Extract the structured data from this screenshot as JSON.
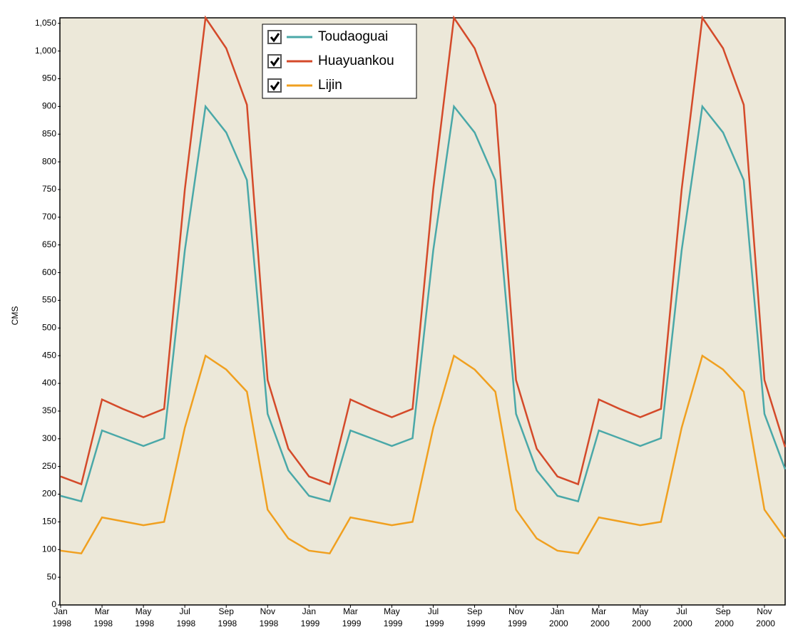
{
  "chart_data": {
    "type": "line",
    "y_label": "CMS",
    "categories": [
      "Jan 1998",
      null,
      "Mar 1998",
      null,
      "May 1998",
      null,
      "Jul 1998",
      null,
      "Sep 1998",
      null,
      "Nov 1998",
      null,
      "Jan 1999",
      null,
      "Mar 1999",
      null,
      "May 1999",
      null,
      "Jul 1999",
      null,
      "Sep 1999",
      null,
      "Nov 1999",
      null,
      "Jan 2000",
      null,
      "Mar 2000",
      null,
      "May 2000",
      null,
      "Jul 2000",
      null,
      "Sep 2000",
      null,
      "Nov 2000",
      null
    ],
    "series": [
      {
        "name": "Toudaoguai",
        "color": "#4aa8a8",
        "values": [
          197,
          187,
          315,
          301,
          287,
          301,
          640,
          900,
          853,
          767,
          345,
          243,
          197,
          187,
          315,
          301,
          287,
          301,
          640,
          900,
          853,
          767,
          345,
          243,
          197,
          187,
          315,
          301,
          287,
          301,
          640,
          900,
          853,
          767,
          345,
          245
        ]
      },
      {
        "name": "Huayuankou",
        "color": "#d44a2a",
        "values": [
          232,
          218,
          371,
          354,
          339,
          354,
          750,
          1060,
          1005,
          903,
          406,
          282,
          232,
          218,
          371,
          354,
          339,
          354,
          750,
          1060,
          1005,
          903,
          406,
          282,
          232,
          218,
          371,
          354,
          339,
          354,
          750,
          1060,
          1005,
          903,
          406,
          285
        ]
      },
      {
        "name": "Lijin",
        "color": "#f0a020",
        "values": [
          98,
          93,
          158,
          151,
          144,
          150,
          320,
          450,
          425,
          385,
          172,
          120,
          98,
          93,
          158,
          151,
          144,
          150,
          320,
          450,
          425,
          385,
          172,
          120,
          98,
          93,
          158,
          151,
          144,
          150,
          320,
          450,
          425,
          385,
          172,
          120
        ]
      }
    ],
    "ylim": [
      0,
      1060
    ],
    "yticks": [
      0,
      50,
      100,
      150,
      200,
      250,
      300,
      350,
      400,
      450,
      500,
      550,
      600,
      650,
      700,
      750,
      800,
      850,
      900,
      950,
      {
        "value": 1000,
        "label": "1,000"
      },
      {
        "value": 1050,
        "label": "1,050"
      }
    ],
    "legend": "top-left"
  }
}
